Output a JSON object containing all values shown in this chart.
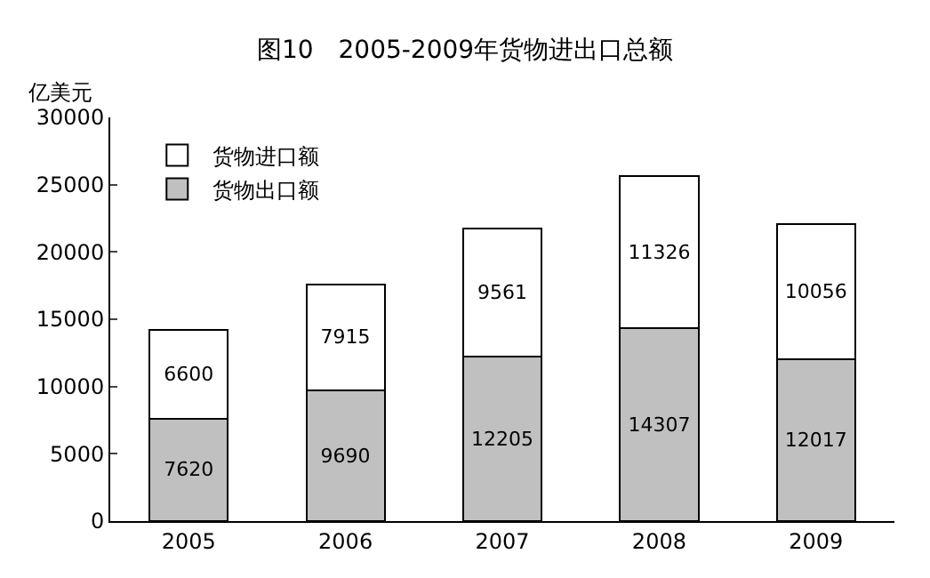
{
  "chart_data": {
    "type": "bar",
    "title": "图10　2005-2009年货物进出口总额",
    "ylabel": "亿美元",
    "categories": [
      "2005",
      "2006",
      "2007",
      "2008",
      "2009"
    ],
    "stacked": true,
    "series": [
      {
        "name": "货物出口额",
        "color": "#c0c0c0",
        "values": [
          7620,
          9690,
          12205,
          14307,
          12017
        ]
      },
      {
        "name": "货物进口额",
        "color": "#ffffff",
        "values": [
          6600,
          7915,
          9561,
          11326,
          10056
        ]
      }
    ],
    "ylim": [
      0,
      30000
    ],
    "yticks": [
      0,
      5000,
      10000,
      15000,
      20000,
      25000,
      30000
    ],
    "grid": false,
    "legend": "top left",
    "data_labels": true
  }
}
